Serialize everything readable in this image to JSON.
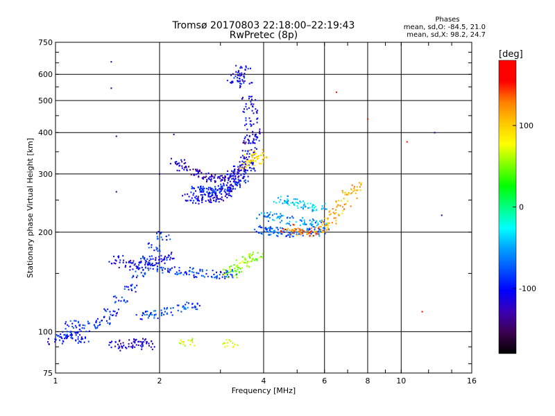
{
  "chart_data": {
    "type": "scatter",
    "title": "Tromsø 20170803 22:18:00–22:19:43",
    "subtitle": "RwPretec (8p)",
    "xlabel": "Frequency [MHz]",
    "ylabel": "Stationary phase Virtual Height [km]",
    "x_scale": "log",
    "y_scale": "log",
    "xlim": [
      1,
      16
    ],
    "ylim": [
      75,
      750
    ],
    "x_ticks": [
      1,
      2,
      4,
      6,
      8,
      10,
      16
    ],
    "x_tick_labels": [
      "1",
      "2",
      "4",
      "6",
      "8",
      "10",
      "16"
    ],
    "y_ticks": [
      75,
      100,
      200,
      300,
      400,
      500,
      600,
      750
    ],
    "y_tick_labels": [
      "75",
      "100",
      "200",
      "300",
      "400",
      "500",
      "600",
      "750"
    ],
    "x_gridlines": [
      2,
      4,
      6,
      8,
      10
    ],
    "y_gridlines": [
      100,
      200,
      300,
      400,
      500,
      600
    ],
    "grid": true,
    "phase_stats": {
      "heading": "Phases",
      "line_o": "mean, sd,O:  -84.5, 21.0",
      "line_x": "mean, sd,X:  98.2, 24.7"
    },
    "colorbar": {
      "label": "[deg]",
      "range": [
        -180,
        180
      ],
      "ticks": [
        100,
        0,
        -100
      ],
      "tick_labels": [
        "100",
        "0",
        "-100"
      ],
      "colors": [
        "#000000",
        "#3c0050",
        "#3c00b4",
        "#0000ff",
        "#0050ff",
        "#00a0ff",
        "#00ffff",
        "#00ff80",
        "#00ff00",
        "#80ff00",
        "#ffff00",
        "#ffc800",
        "#ff8000",
        "#ff0000",
        "#ff0000"
      ]
    },
    "series": [
      {
        "phase_deg": -95,
        "x": [
          2.55,
          2.65,
          2.75,
          2.85,
          2.95,
          3.05,
          3.15,
          3.25,
          3.35,
          3.45,
          3.55,
          3.65,
          3.7
        ],
        "y": [
          270,
          268,
          266,
          265,
          268,
          270,
          275,
          282,
          290,
          300,
          320,
          350,
          380
        ]
      },
      {
        "phase_deg": -110,
        "x": [
          2.45,
          2.55,
          2.7,
          2.85,
          3.0,
          3.15,
          3.3,
          3.45,
          3.6
        ],
        "y": [
          255,
          252,
          250,
          252,
          255,
          262,
          272,
          290,
          315
        ]
      },
      {
        "phase_deg": -120,
        "x": [
          2.25,
          2.35,
          2.5,
          2.65,
          2.8,
          2.95,
          3.1,
          3.25,
          3.4,
          3.55,
          3.65
        ],
        "y": [
          325,
          315,
          305,
          298,
          292,
          290,
          292,
          298,
          308,
          330,
          380
        ]
      },
      {
        "phase_deg": -105,
        "x": [
          3.3,
          3.4,
          3.5,
          3.55,
          3.6,
          3.65,
          3.7,
          3.72
        ],
        "y": [
          580,
          600,
          620,
          560,
          500,
          470,
          430,
          400
        ]
      },
      {
        "phase_deg": -90,
        "x": [
          1.12,
          1.2,
          1.3,
          1.38,
          1.45,
          1.55,
          1.65,
          1.75,
          1.85,
          1.95,
          2.05
        ],
        "y": [
          105,
          103,
          105,
          108,
          115,
          125,
          135,
          150,
          165,
          180,
          195
        ]
      },
      {
        "phase_deg": -110,
        "x": [
          1.5,
          1.6,
          1.7,
          1.8,
          1.9,
          2.0,
          2.1
        ],
        "y": [
          165,
          160,
          158,
          160,
          162,
          165,
          170
        ]
      },
      {
        "phase_deg": -85,
        "x": [
          1.9,
          2.05,
          2.2,
          2.4,
          2.6,
          2.8,
          3.0,
          3.2
        ],
        "y": [
          158,
          155,
          153,
          152,
          150,
          150,
          149,
          150
        ]
      },
      {
        "phase_deg": -80,
        "x": [
          1.8,
          1.95,
          2.1,
          2.3,
          2.5
        ],
        "y": [
          112,
          113,
          115,
          118,
          120
        ]
      },
      {
        "phase_deg": -100,
        "x": [
          1.0,
          1.05,
          1.1,
          1.15,
          1.2
        ],
        "y": [
          94,
          96,
          98,
          97,
          95
        ]
      },
      {
        "phase_deg": -120,
        "x": [
          1.5,
          1.6,
          1.7,
          1.75,
          1.85
        ],
        "y": [
          92,
          90,
          92,
          93,
          91
        ]
      },
      {
        "phase_deg": -75,
        "x": [
          3.9,
          4.1,
          4.3,
          4.5,
          4.8,
          5.2,
          5.6,
          5.9
        ],
        "y": [
          205,
          203,
          201,
          200,
          199,
          199,
          200,
          202
        ]
      },
      {
        "phase_deg": -55,
        "x": [
          4.0,
          4.3,
          4.6,
          5.0,
          5.4,
          5.8
        ],
        "y": [
          225,
          222,
          218,
          215,
          213,
          212
        ]
      },
      {
        "phase_deg": -40,
        "x": [
          4.5,
          4.8,
          5.1,
          5.4,
          5.8
        ],
        "y": [
          250,
          245,
          242,
          240,
          238
        ]
      },
      {
        "phase_deg": 55,
        "x": [
          3.2,
          3.35,
          3.5,
          3.65,
          3.8
        ],
        "y": [
          150,
          155,
          160,
          165,
          170
        ]
      },
      {
        "phase_deg": 95,
        "x": [
          3.6,
          3.7,
          3.8,
          3.9
        ],
        "y": [
          320,
          335,
          345,
          330
        ]
      },
      {
        "phase_deg": 110,
        "x": [
          5.9,
          6.2,
          6.5,
          6.8,
          7.1,
          7.4
        ],
        "y": [
          205,
          215,
          230,
          245,
          260,
          275
        ]
      },
      {
        "phase_deg": 125,
        "x": [
          4.7,
          5.0,
          5.3,
          5.7
        ],
        "y": [
          205,
          200,
          198,
          200
        ]
      },
      {
        "phase_deg": 75,
        "x": [
          2.4,
          3.2
        ],
        "y": [
          93,
          92
        ]
      },
      {
        "phase_deg": -140,
        "x": [
          1.45,
          1.45,
          1.5,
          1.5,
          2.2,
          2.0,
          13.1,
          12.5
        ],
        "y": [
          655,
          545,
          390,
          265,
          395,
          300,
          225,
          400
        ]
      },
      {
        "phase_deg": 150,
        "x": [
          6.5,
          8.0,
          10.4,
          11.5
        ],
        "y": [
          530,
          440,
          375,
          115
        ]
      }
    ]
  }
}
